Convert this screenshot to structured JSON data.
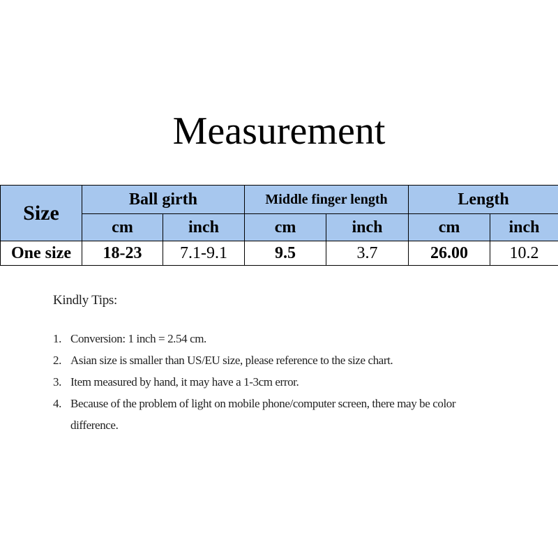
{
  "title": "Measurement",
  "table": {
    "header": {
      "size": "Size",
      "groups": [
        "Ball girth",
        "Middle finger length",
        "Length"
      ],
      "units": [
        "cm",
        "inch",
        "cm",
        "inch",
        "cm",
        "inch"
      ]
    },
    "rows": [
      [
        "One size",
        "18-23",
        "7.1-9.1",
        "9.5",
        "3.7",
        "26.00",
        "10.2"
      ]
    ]
  },
  "tips": {
    "heading": "Kindly Tips:",
    "items": [
      {
        "number": "1.",
        "text": "Conversion: 1 inch = 2.54 cm."
      },
      {
        "number": "2.",
        "text": "Asian size is smaller than US/EU size, please reference to the size chart."
      },
      {
        "number": "3.",
        "text": "Item measured by hand, it may have a 1-3cm error."
      },
      {
        "number": "4.",
        "text": "Because of the problem of light on mobile phone/computer screen, there may be color difference."
      }
    ]
  }
}
